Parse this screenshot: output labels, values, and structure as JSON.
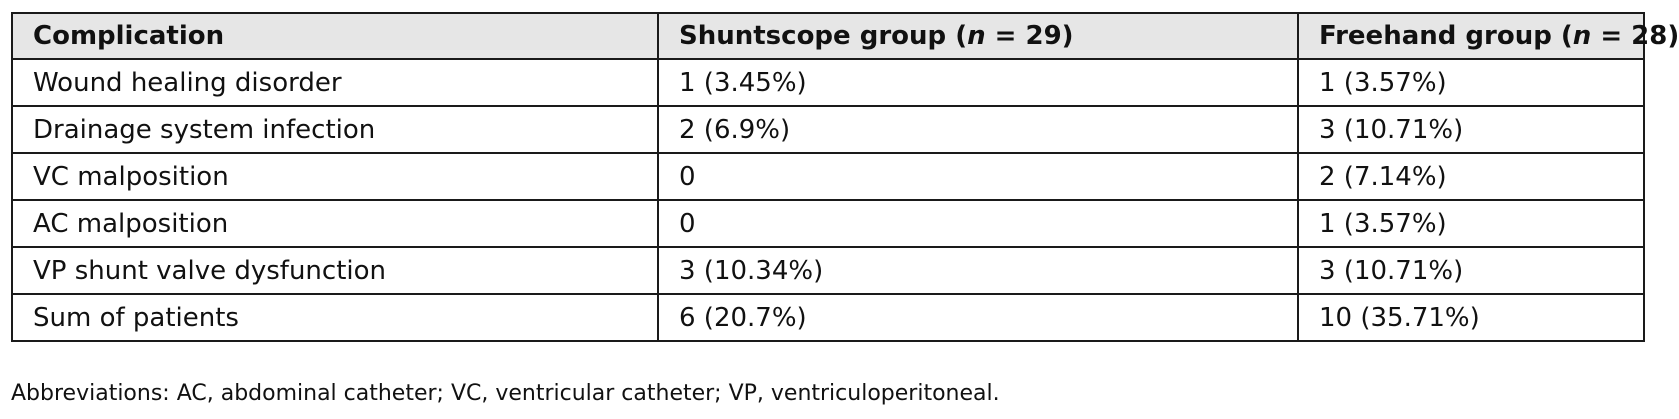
{
  "table": {
    "headers": [
      {
        "prefix": "Complication",
        "italic": "",
        "suffix": ""
      },
      {
        "prefix": "Shuntscope group (",
        "italic": "n",
        "suffix": " = 29)"
      },
      {
        "prefix": "Freehand group (",
        "italic": "n",
        "suffix": " = 28)"
      }
    ],
    "rows": [
      {
        "complication": "Wound healing disorder",
        "shuntscope": "1 (3.45%)",
        "freehand": "1 (3.57%)"
      },
      {
        "complication": "Drainage system infection",
        "shuntscope": "2 (6.9%)",
        "freehand": "3 (10.71%)"
      },
      {
        "complication": "VC malposition",
        "shuntscope": "0",
        "freehand": "2 (7.14%)"
      },
      {
        "complication": "AC malposition",
        "shuntscope": "0",
        "freehand": "1 (3.57%)"
      },
      {
        "complication": "VP shunt valve dysfunction",
        "shuntscope": "3 (10.34%)",
        "freehand": "3 (10.71%)"
      },
      {
        "complication": "Sum of patients",
        "shuntscope": "6 (20.7%)",
        "freehand": "10 (35.71%)"
      }
    ]
  },
  "footnote": "Abbreviations: AC, abdominal catheter; VC, ventricular catheter; VP, ventriculoperitoneal."
}
